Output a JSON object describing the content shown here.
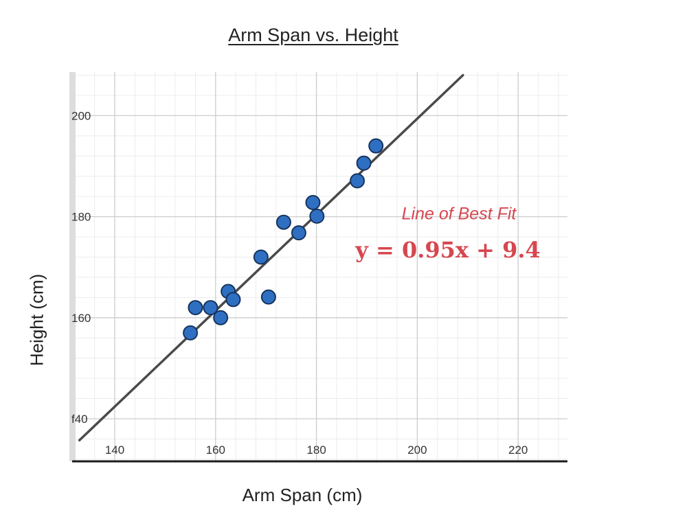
{
  "chart_data": {
    "type": "scatter",
    "title": "Arm Span vs. Height",
    "xlabel": "Arm Span (cm)",
    "ylabel": "Height (cm)",
    "xlim": [
      133,
      229
    ],
    "ylim": [
      132,
      208
    ],
    "xticks": [
      {
        "value": 140,
        "label": "140"
      },
      {
        "value": 160,
        "label": "160"
      },
      {
        "value": 180,
        "label": "180"
      },
      {
        "value": 200,
        "label": "200"
      },
      {
        "value": 220,
        "label": "220"
      }
    ],
    "yticks": [
      {
        "value": 140,
        "label": "f40"
      },
      {
        "value": 160,
        "label": "160"
      },
      {
        "value": 180,
        "label": "180"
      },
      {
        "value": 200,
        "label": "200"
      }
    ],
    "grid": true,
    "minor_grid_step": 4,
    "points": [
      {
        "x": 155,
        "y": 157
      },
      {
        "x": 156,
        "y": 162
      },
      {
        "x": 159,
        "y": 162
      },
      {
        "x": 161,
        "y": 160
      },
      {
        "x": 162.5,
        "y": 165.2
      },
      {
        "x": 163.5,
        "y": 163.6
      },
      {
        "x": 169,
        "y": 172
      },
      {
        "x": 170.5,
        "y": 164.1
      },
      {
        "x": 173.5,
        "y": 178.9
      },
      {
        "x": 176.5,
        "y": 176.8
      },
      {
        "x": 179.3,
        "y": 182.8
      },
      {
        "x": 180.1,
        "y": 180.1
      },
      {
        "x": 188.1,
        "y": 187.1
      },
      {
        "x": 189.4,
        "y": 190.6
      },
      {
        "x": 191.8,
        "y": 194
      }
    ],
    "trendline": {
      "slope": 0.95,
      "intercept": 9.4
    },
    "annotation": {
      "label": "Line of Best Fit",
      "equation": "y = 0.95x + 9.4"
    },
    "colors": {
      "point_fill": "#2f6fc2",
      "point_stroke": "#16345e",
      "line": "#4a4a4a",
      "annotation": "#d6474f",
      "major_grid": "#cccccc",
      "minor_grid": "#ececec"
    }
  }
}
